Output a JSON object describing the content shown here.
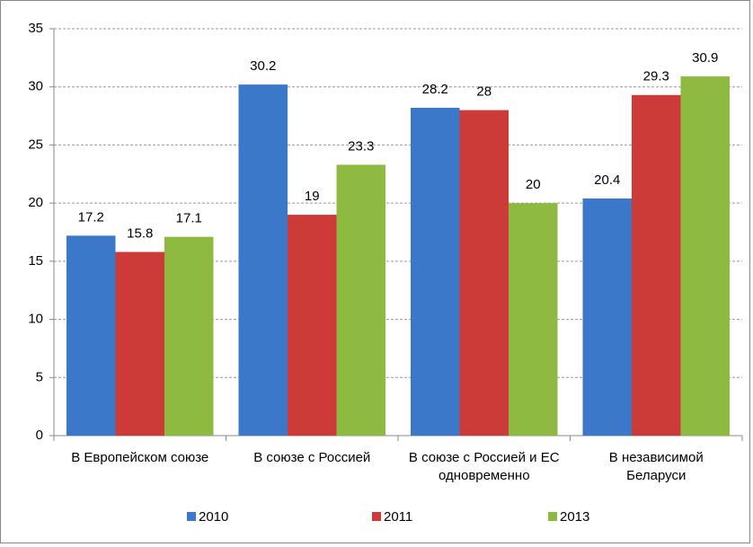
{
  "chart_data": {
    "type": "bar",
    "categories": [
      "В Европейском союзе",
      "В союзе с Россией",
      "В союзе с Россией и ЕС одновременно",
      "В независимой Беларуси"
    ],
    "series": [
      {
        "name": "2010",
        "color": "#3b78c9",
        "values": [
          17.2,
          30.2,
          28.2,
          20.4
        ]
      },
      {
        "name": "2011",
        "color": "#cc3b37",
        "values": [
          15.8,
          19,
          28,
          29.3
        ]
      },
      {
        "name": "2013",
        "color": "#8fba42",
        "values": [
          17.1,
          23.3,
          20,
          30.9
        ]
      }
    ],
    "ylim": [
      0,
      35
    ],
    "yticks": [
      0,
      5,
      10,
      15,
      20,
      25,
      30,
      35
    ],
    "grid": true,
    "legend": "bottom"
  }
}
